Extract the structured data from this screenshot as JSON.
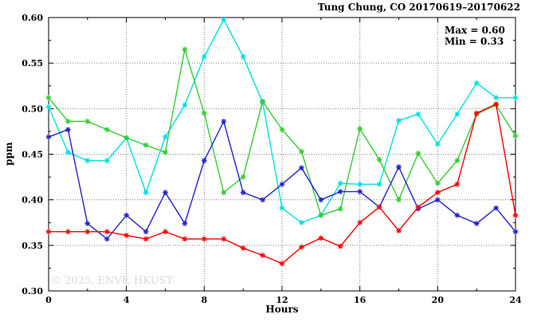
{
  "header": {
    "title": "Tung Chung, CO 20170619–20170622"
  },
  "annotations": {
    "max_label": "Max = 0.60",
    "min_label": "Min = 0.33"
  },
  "watermark": {
    "text": "© 2025, ENVF, HKUST"
  },
  "axes": {
    "xlabel": "Hours",
    "ylabel": "ppm",
    "xlim": [
      0,
      24
    ],
    "ylim": [
      0.3,
      0.6
    ],
    "xticks": [
      0,
      4,
      8,
      12,
      16,
      20,
      24
    ],
    "xminor": [
      2,
      6,
      10,
      14,
      18,
      22
    ],
    "yticks": [
      0.3,
      0.35,
      0.4,
      0.45,
      0.5,
      0.55,
      0.6
    ],
    "yminor": [
      0.325,
      0.375,
      0.425,
      0.475,
      0.525,
      0.575
    ],
    "grid": "dotted",
    "frame_color": "#000000",
    "grid_color": "#808080"
  },
  "chart_data": {
    "type": "line",
    "title": "Tung Chung, CO 20170619–20170622",
    "xlabel": "Hours",
    "ylabel": "ppm",
    "xlim": [
      0,
      24
    ],
    "ylim": [
      0.3,
      0.6
    ],
    "legend": false,
    "marker": "star",
    "max_value": 0.6,
    "min_value": 0.33,
    "x": [
      0,
      1,
      2,
      3,
      4,
      5,
      6,
      7,
      8,
      9,
      10,
      11,
      12,
      13,
      14,
      15,
      16,
      17,
      18,
      19,
      20,
      21,
      22,
      23,
      24
    ],
    "series": [
      {
        "name": "cyan",
        "color": "#00e0e0",
        "values": [
          0.502,
          0.452,
          0.443,
          0.443,
          0.468,
          0.408,
          0.469,
          0.504,
          0.557,
          0.598,
          0.557,
          0.507,
          0.391,
          0.375,
          0.383,
          0.418,
          0.417,
          0.417,
          0.487,
          0.494,
          0.461,
          0.494,
          0.528,
          0.512,
          0.512
        ]
      },
      {
        "name": "green",
        "color": "#33cc33",
        "values": [
          0.512,
          0.486,
          0.486,
          0.477,
          0.468,
          0.46,
          0.452,
          0.565,
          0.495,
          0.408,
          0.425,
          0.508,
          0.477,
          0.453,
          0.383,
          0.39,
          0.478,
          0.444,
          0.4,
          0.451,
          0.418,
          0.443,
          0.494,
          0.504,
          0.47
        ]
      },
      {
        "name": "blue",
        "color": "#2222cc",
        "values": [
          0.469,
          0.477,
          0.374,
          0.357,
          0.383,
          0.365,
          0.408,
          0.374,
          0.443,
          0.486,
          0.408,
          0.4,
          0.417,
          0.435,
          0.4,
          0.409,
          0.409,
          0.392,
          0.436,
          0.39,
          0.4,
          0.383,
          0.374,
          0.391,
          0.365
        ]
      },
      {
        "name": "red",
        "color": "#ff0000",
        "values": [
          0.365,
          0.365,
          0.365,
          0.365,
          0.361,
          0.357,
          0.365,
          0.357,
          0.357,
          0.357,
          0.347,
          0.339,
          0.33,
          0.348,
          0.358,
          0.349,
          0.375,
          0.392,
          0.366,
          0.392,
          0.408,
          0.417,
          0.495,
          0.505,
          0.383
        ]
      }
    ]
  }
}
